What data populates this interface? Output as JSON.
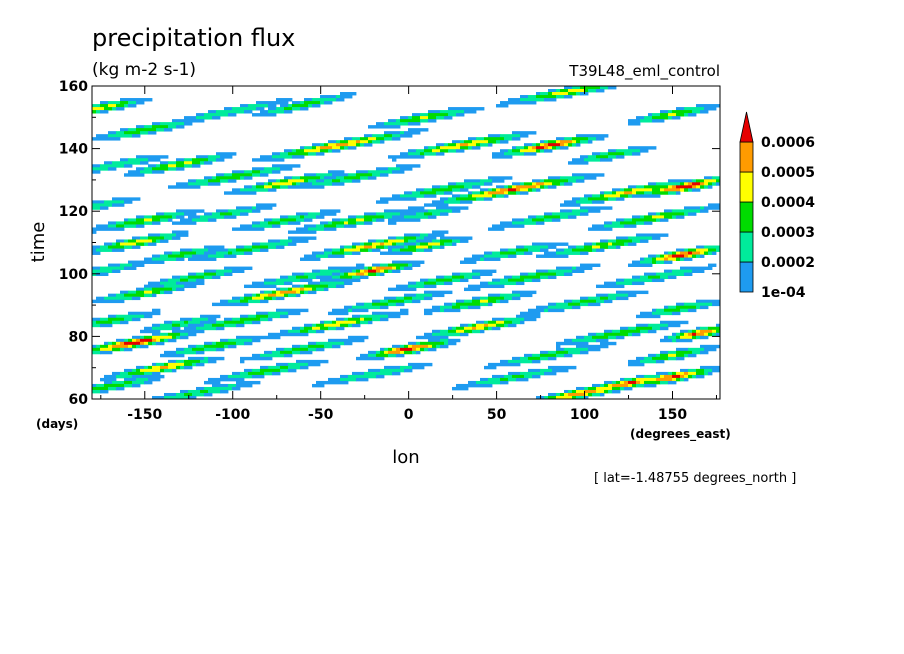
{
  "chart_data": {
    "type": "heatmap",
    "title": "precipitation flux",
    "units": "(kg m-2 s-1)",
    "experiment": "T39L48_eml_control",
    "xlabel": "lon",
    "ylabel": "time",
    "x_units": "(degrees_east)",
    "y_units": "(days)",
    "xlim": [
      -180,
      177
    ],
    "ylim": [
      60,
      160
    ],
    "x_ticks": [
      -150,
      -100,
      -50,
      0,
      50,
      100,
      150
    ],
    "y_ticks": [
      60,
      80,
      100,
      120,
      140,
      160
    ],
    "x_tick_labels": [
      "-150",
      "-100",
      "-50",
      "0",
      "50",
      "100",
      "150"
    ],
    "y_tick_labels": [
      "60",
      "80",
      "100",
      "120",
      "140",
      "160"
    ],
    "slice_note": "[ lat=-1.48755 degrees_north ]",
    "contour_levels": [
      0.0001,
      0.0002,
      0.0003,
      0.0004,
      0.0005,
      0.0006
    ],
    "legend_labels": [
      "1e-04",
      "0.0002",
      "0.0003",
      "0.0004",
      "0.0005",
      "0.0006"
    ],
    "colors": [
      "#ffffff",
      "#1e9bf0",
      "#00eb9b",
      "#00dc00",
      "#ffff00",
      "#ff9b00",
      "#e60000"
    ],
    "legend_position": "right",
    "grid": false,
    "bands": [
      {
        "lon": -175,
        "t": 153,
        "slope": 0.105,
        "len": 45,
        "peak": 0.00045
      },
      {
        "lon": -150,
        "t": 146,
        "slope": 0.1,
        "len": 50,
        "peak": 0.0004
      },
      {
        "lon": -100,
        "t": 152,
        "slope": 0.11,
        "len": 60,
        "peak": 0.0003
      },
      {
        "lon": -60,
        "t": 154,
        "slope": 0.12,
        "len": 50,
        "peak": 0.00035
      },
      {
        "lon": -40,
        "t": 141,
        "slope": 0.1,
        "len": 70,
        "peak": 0.00055
      },
      {
        "lon": 10,
        "t": 150,
        "slope": 0.1,
        "len": 50,
        "peak": 0.00042
      },
      {
        "lon": 30,
        "t": 141,
        "slope": 0.1,
        "len": 60,
        "peak": 0.00052
      },
      {
        "lon": 80,
        "t": 141,
        "slope": 0.1,
        "len": 45,
        "peak": 0.00065
      },
      {
        "lon": 90,
        "t": 158,
        "slope": 0.1,
        "len": 60,
        "peak": 0.00045
      },
      {
        "lon": 150,
        "t": 151,
        "slope": 0.1,
        "len": 40,
        "peak": 0.00042
      },
      {
        "lon": 115,
        "t": 138,
        "slope": 0.1,
        "len": 40,
        "peak": 0.00035
      },
      {
        "lon": -165,
        "t": 135,
        "slope": 0.1,
        "len": 50,
        "peak": 0.0003
      },
      {
        "lon": -130,
        "t": 135,
        "slope": 0.1,
        "len": 50,
        "peak": 0.00042
      },
      {
        "lon": -100,
        "t": 131,
        "slope": 0.1,
        "len": 60,
        "peak": 0.00038
      },
      {
        "lon": -70,
        "t": 129,
        "slope": 0.1,
        "len": 50,
        "peak": 0.00048
      },
      {
        "lon": -30,
        "t": 131,
        "slope": 0.1,
        "len": 60,
        "peak": 0.00035
      },
      {
        "lon": 20,
        "t": 127,
        "slope": 0.1,
        "len": 60,
        "peak": 0.00038
      },
      {
        "lon": 60,
        "t": 127,
        "slope": 0.1,
        "len": 70,
        "peak": 0.00062
      },
      {
        "lon": 125,
        "t": 126,
        "slope": 0.1,
        "len": 55,
        "peak": 0.00052
      },
      {
        "lon": 158,
        "t": 128,
        "slope": 0.1,
        "len": 40,
        "peak": 0.00068
      },
      {
        "lon": -175,
        "t": 122,
        "slope": 0.1,
        "len": 40,
        "peak": 0.0003
      },
      {
        "lon": -150,
        "t": 117,
        "slope": 0.1,
        "len": 50,
        "peak": 0.00042
      },
      {
        "lon": -105,
        "t": 119,
        "slope": 0.1,
        "len": 50,
        "peak": 0.00032
      },
      {
        "lon": -70,
        "t": 117,
        "slope": 0.1,
        "len": 50,
        "peak": 0.00035
      },
      {
        "lon": -30,
        "t": 117,
        "slope": 0.1,
        "len": 60,
        "peak": 0.00042
      },
      {
        "lon": 10,
        "t": 119,
        "slope": 0.1,
        "len": 40,
        "peak": 0.00032
      },
      {
        "lon": 80,
        "t": 118,
        "slope": 0.1,
        "len": 60,
        "peak": 0.00033
      },
      {
        "lon": 140,
        "t": 118,
        "slope": 0.1,
        "len": 60,
        "peak": 0.00042
      },
      {
        "lon": -155,
        "t": 110,
        "slope": 0.1,
        "len": 45,
        "peak": 0.00048
      },
      {
        "lon": -130,
        "t": 106,
        "slope": 0.1,
        "len": 40,
        "peak": 0.00035
      },
      {
        "lon": -90,
        "t": 108,
        "slope": 0.1,
        "len": 60,
        "peak": 0.00035
      },
      {
        "lon": -20,
        "t": 109,
        "slope": 0.1,
        "len": 60,
        "peak": 0.00052
      },
      {
        "lon": 10,
        "t": 109,
        "slope": 0.1,
        "len": 40,
        "peak": 0.00045
      },
      {
        "lon": 60,
        "t": 107,
        "slope": 0.1,
        "len": 50,
        "peak": 0.00035
      },
      {
        "lon": 110,
        "t": 109,
        "slope": 0.1,
        "len": 60,
        "peak": 0.00042
      },
      {
        "lon": 155,
        "t": 106,
        "slope": 0.1,
        "len": 40,
        "peak": 0.00065
      },
      {
        "lon": -175,
        "t": 101,
        "slope": 0.1,
        "len": 50,
        "peak": 0.0003
      },
      {
        "lon": -120,
        "t": 99,
        "slope": 0.1,
        "len": 50,
        "peak": 0.00035
      },
      {
        "lon": -60,
        "t": 99,
        "slope": 0.1,
        "len": 60,
        "peak": 0.00032
      },
      {
        "lon": -20,
        "t": 101,
        "slope": 0.1,
        "len": 40,
        "peak": 0.00062
      },
      {
        "lon": 20,
        "t": 98,
        "slope": 0.1,
        "len": 50,
        "peak": 0.00035
      },
      {
        "lon": 70,
        "t": 99,
        "slope": 0.1,
        "len": 60,
        "peak": 0.00038
      },
      {
        "lon": 140,
        "t": 99,
        "slope": 0.1,
        "len": 60,
        "peak": 0.00032
      },
      {
        "lon": -150,
        "t": 94,
        "slope": 0.1,
        "len": 50,
        "peak": 0.00042
      },
      {
        "lon": -70,
        "t": 94,
        "slope": 0.1,
        "len": 60,
        "peak": 0.00055
      },
      {
        "lon": -10,
        "t": 91,
        "slope": 0.1,
        "len": 60,
        "peak": 0.00035
      },
      {
        "lon": 40,
        "t": 91,
        "slope": 0.1,
        "len": 50,
        "peak": 0.00042
      },
      {
        "lon": 100,
        "t": 91,
        "slope": 0.1,
        "len": 60,
        "peak": 0.00035
      },
      {
        "lon": 155,
        "t": 89,
        "slope": 0.1,
        "len": 40,
        "peak": 0.00038
      },
      {
        "lon": -170,
        "t": 85,
        "slope": 0.1,
        "len": 50,
        "peak": 0.00035
      },
      {
        "lon": -130,
        "t": 84,
        "slope": 0.1,
        "len": 40,
        "peak": 0.00032
      },
      {
        "lon": -95,
        "t": 85,
        "slope": 0.1,
        "len": 60,
        "peak": 0.00038
      },
      {
        "lon": -40,
        "t": 84,
        "slope": 0.1,
        "len": 60,
        "peak": 0.00048
      },
      {
        "lon": 40,
        "t": 83,
        "slope": 0.1,
        "len": 50,
        "peak": 0.00052
      },
      {
        "lon": 120,
        "t": 81,
        "slope": 0.1,
        "len": 60,
        "peak": 0.0004
      },
      {
        "lon": 165,
        "t": 81,
        "slope": 0.1,
        "len": 30,
        "peak": 0.00062
      },
      {
        "lon": -155,
        "t": 78,
        "slope": 0.1,
        "len": 50,
        "peak": 0.00068
      },
      {
        "lon": -110,
        "t": 77,
        "slope": 0.1,
        "len": 50,
        "peak": 0.00038
      },
      {
        "lon": -60,
        "t": 76,
        "slope": 0.1,
        "len": 60,
        "peak": 0.00035
      },
      {
        "lon": 0,
        "t": 76,
        "slope": 0.1,
        "len": 40,
        "peak": 0.00065
      },
      {
        "lon": 80,
        "t": 74,
        "slope": 0.1,
        "len": 60,
        "peak": 0.00035
      },
      {
        "lon": 150,
        "t": 74,
        "slope": 0.1,
        "len": 40,
        "peak": 0.00042
      },
      {
        "lon": -140,
        "t": 70,
        "slope": 0.1,
        "len": 50,
        "peak": 0.00052
      },
      {
        "lon": -80,
        "t": 69,
        "slope": 0.1,
        "len": 60,
        "peak": 0.00035
      },
      {
        "lon": -20,
        "t": 68,
        "slope": 0.1,
        "len": 60,
        "peak": 0.0003
      },
      {
        "lon": 60,
        "t": 67,
        "slope": 0.1,
        "len": 60,
        "peak": 0.00032
      },
      {
        "lon": 125,
        "t": 65,
        "slope": 0.1,
        "len": 40,
        "peak": 0.00062
      },
      {
        "lon": 150,
        "t": 67,
        "slope": 0.1,
        "len": 40,
        "peak": 0.00062
      },
      {
        "lon": -170,
        "t": 64,
        "slope": 0.1,
        "len": 50,
        "peak": 0.00038
      },
      {
        "lon": -120,
        "t": 62,
        "slope": 0.1,
        "len": 60,
        "peak": 0.00032
      },
      {
        "lon": 100,
        "t": 62,
        "slope": 0.1,
        "len": 50,
        "peak": 0.00058
      }
    ]
  }
}
